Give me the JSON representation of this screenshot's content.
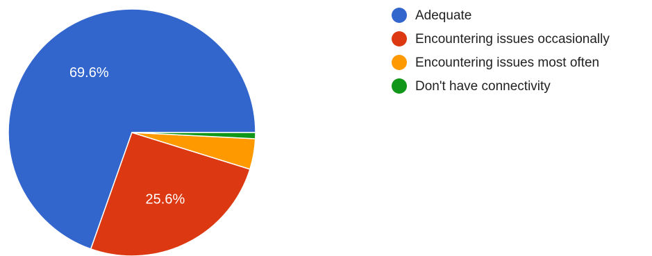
{
  "chart_data": {
    "type": "pie",
    "title": "",
    "legend_position": "right",
    "slices": [
      {
        "label": "Adequate",
        "value": 69.6,
        "display_label": "69.6%",
        "color": "#3366cc"
      },
      {
        "label": "Encountering issues occasionally",
        "value": 25.6,
        "display_label": "25.6%",
        "color": "#dc3912"
      },
      {
        "label": "Encountering issues most often",
        "value": 4.0,
        "display_label": "",
        "color": "#ff9900"
      },
      {
        "label": "Don't have connectivity",
        "value": 0.8,
        "display_label": "",
        "color": "#109618"
      }
    ]
  },
  "legend": {
    "items": [
      {
        "label": "Adequate",
        "color": "#3366cc"
      },
      {
        "label": "Encountering issues occasionally",
        "color": "#dc3912"
      },
      {
        "label": "Encountering issues most often",
        "color": "#ff9900"
      },
      {
        "label": "Don't have connectivity",
        "color": "#109618"
      }
    ]
  }
}
